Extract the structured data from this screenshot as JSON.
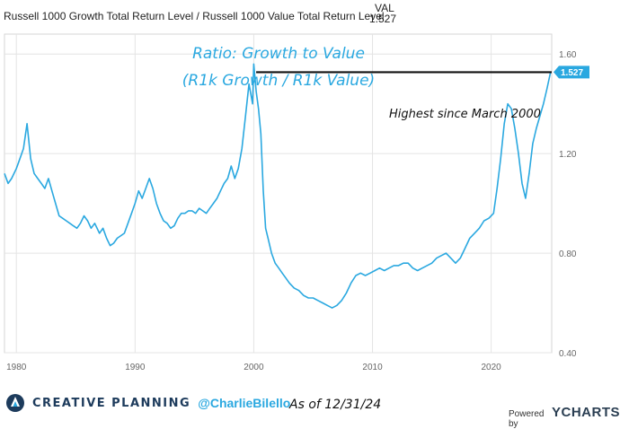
{
  "header": {
    "series_label": "Russell 1000 Growth Total Return Level / Russell 1000 Value Total Return Level",
    "val_label": "VAL",
    "val_value": "1.527"
  },
  "annotations": {
    "title_line1": "Ratio: Growth to Value",
    "title_line2": "(R1k Growth / R1k Value)",
    "highest": "Highest since March 2000"
  },
  "footer": {
    "brand": "CREATIVE PLANNING",
    "handle": "@CharlieBilello",
    "as_of": "As of 12/31/24",
    "powered_by": "Powered by",
    "ycharts": "YCHARTS"
  },
  "colors": {
    "line": "#2aa8e0",
    "highest_line": "#111111",
    "value_badge": "#2aa8e0",
    "brand": "#1d3b5c"
  },
  "chart_data": {
    "type": "line",
    "xlabel": "",
    "ylabel": "",
    "xlim": [
      1979,
      2025.1
    ],
    "ylim": [
      0.4,
      1.68
    ],
    "x_ticks": [
      "1980",
      "1990",
      "2000",
      "2010",
      "2020"
    ],
    "x_tick_values": [
      1980,
      1990,
      2000,
      2010,
      2020
    ],
    "y_ticks": [
      "0.40",
      "0.80",
      "1.20",
      "1.60"
    ],
    "y_tick_values": [
      0.4,
      0.8,
      1.2,
      1.6
    ],
    "grid": true,
    "last_value_label": "1.527",
    "highest_level": 1.527,
    "highest_from_x": 2000.2,
    "x": [
      1979.0,
      1979.3,
      1979.6,
      1980.0,
      1980.3,
      1980.6,
      1980.9,
      1981.2,
      1981.5,
      1981.8,
      1982.1,
      1982.4,
      1982.7,
      1983.0,
      1983.3,
      1983.6,
      1983.9,
      1984.2,
      1984.5,
      1984.8,
      1985.1,
      1985.4,
      1985.7,
      1986.0,
      1986.3,
      1986.6,
      1987.0,
      1987.3,
      1987.6,
      1987.9,
      1988.2,
      1988.5,
      1988.8,
      1989.1,
      1989.4,
      1989.7,
      1990.0,
      1990.3,
      1990.6,
      1990.9,
      1991.2,
      1991.5,
      1991.8,
      1992.1,
      1992.4,
      1992.7,
      1993.0,
      1993.3,
      1993.6,
      1993.9,
      1994.2,
      1994.5,
      1994.8,
      1995.1,
      1995.4,
      1995.7,
      1996.0,
      1996.3,
      1996.6,
      1996.9,
      1997.2,
      1997.5,
      1997.8,
      1998.1,
      1998.4,
      1998.7,
      1999.0,
      1999.3,
      1999.6,
      1999.9,
      2000.0,
      2000.2,
      2000.4,
      2000.6,
      2000.8,
      2001.0,
      2001.2,
      2001.5,
      2001.8,
      2002.1,
      2002.4,
      2002.7,
      2003.0,
      2003.4,
      2003.8,
      2004.2,
      2004.6,
      2005.0,
      2005.4,
      2005.8,
      2006.2,
      2006.6,
      2007.0,
      2007.4,
      2007.8,
      2008.2,
      2008.6,
      2009.0,
      2009.4,
      2009.8,
      2010.2,
      2010.6,
      2011.0,
      2011.4,
      2011.8,
      2012.2,
      2012.6,
      2013.0,
      2013.4,
      2013.8,
      2014.2,
      2014.6,
      2015.0,
      2015.4,
      2015.8,
      2016.2,
      2016.6,
      2017.0,
      2017.4,
      2017.8,
      2018.2,
      2018.6,
      2019.0,
      2019.4,
      2019.8,
      2020.2,
      2020.5,
      2020.8,
      2021.1,
      2021.4,
      2021.7,
      2022.0,
      2022.3,
      2022.6,
      2022.9,
      2023.2,
      2023.5,
      2023.8,
      2024.1,
      2024.4,
      2024.7,
      2025.0
    ],
    "y": [
      1.12,
      1.08,
      1.1,
      1.14,
      1.18,
      1.22,
      1.32,
      1.18,
      1.12,
      1.1,
      1.08,
      1.06,
      1.1,
      1.05,
      1.0,
      0.95,
      0.94,
      0.93,
      0.92,
      0.91,
      0.9,
      0.92,
      0.95,
      0.93,
      0.9,
      0.92,
      0.88,
      0.9,
      0.86,
      0.83,
      0.84,
      0.86,
      0.87,
      0.88,
      0.92,
      0.96,
      1.0,
      1.05,
      1.02,
      1.06,
      1.1,
      1.06,
      1.0,
      0.96,
      0.93,
      0.92,
      0.9,
      0.91,
      0.94,
      0.96,
      0.96,
      0.97,
      0.97,
      0.96,
      0.98,
      0.97,
      0.96,
      0.98,
      1.0,
      1.02,
      1.05,
      1.08,
      1.1,
      1.15,
      1.1,
      1.14,
      1.22,
      1.35,
      1.48,
      1.4,
      1.56,
      1.45,
      1.38,
      1.28,
      1.05,
      0.9,
      0.86,
      0.8,
      0.76,
      0.74,
      0.72,
      0.7,
      0.68,
      0.66,
      0.65,
      0.63,
      0.62,
      0.62,
      0.61,
      0.6,
      0.59,
      0.58,
      0.59,
      0.61,
      0.64,
      0.68,
      0.71,
      0.72,
      0.71,
      0.72,
      0.73,
      0.74,
      0.73,
      0.74,
      0.75,
      0.75,
      0.76,
      0.76,
      0.74,
      0.73,
      0.74,
      0.75,
      0.76,
      0.78,
      0.79,
      0.8,
      0.78,
      0.76,
      0.78,
      0.82,
      0.86,
      0.88,
      0.9,
      0.93,
      0.94,
      0.96,
      1.06,
      1.18,
      1.32,
      1.4,
      1.38,
      1.3,
      1.2,
      1.08,
      1.02,
      1.12,
      1.24,
      1.3,
      1.35,
      1.4,
      1.46,
      1.527
    ]
  }
}
